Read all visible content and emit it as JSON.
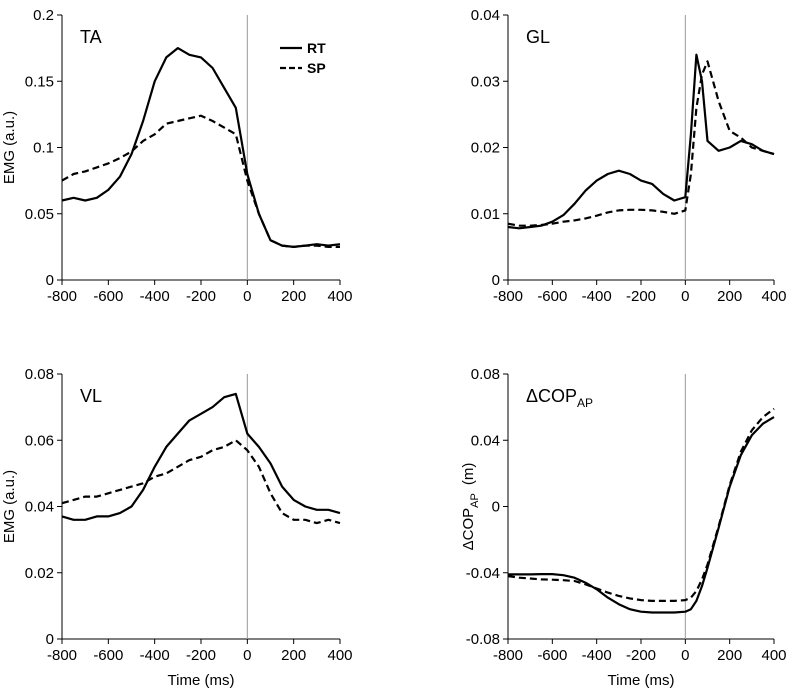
{
  "chart_data": [
    {
      "type": "line",
      "title": "TA",
      "xlabel": "",
      "ylabel": "EMG (a.u.)",
      "xlim": [
        -800,
        400
      ],
      "ylim": [
        0,
        0.2
      ],
      "xticks": [
        "-800",
        "-600",
        "-400",
        "-200",
        "0",
        "200",
        "400"
      ],
      "yticks": [
        "0",
        "0.05",
        "0.1",
        "0.15",
        "0.2"
      ],
      "vline_x": 0,
      "legend": "top-right",
      "series": [
        {
          "name": "RT",
          "style": "solid",
          "x": [
            -800,
            -750,
            -700,
            -650,
            -600,
            -550,
            -500,
            -450,
            -400,
            -350,
            -300,
            -250,
            -200,
            -150,
            -100,
            -50,
            0,
            50,
            100,
            150,
            200,
            250,
            300,
            350,
            400
          ],
          "y": [
            0.06,
            0.062,
            0.06,
            0.062,
            0.068,
            0.078,
            0.095,
            0.12,
            0.15,
            0.168,
            0.175,
            0.17,
            0.168,
            0.16,
            0.145,
            0.13,
            0.08,
            0.05,
            0.03,
            0.026,
            0.025,
            0.026,
            0.027,
            0.026,
            0.027
          ]
        },
        {
          "name": "SP",
          "style": "dashed",
          "x": [
            -800,
            -750,
            -700,
            -650,
            -600,
            -550,
            -500,
            -450,
            -400,
            -350,
            -300,
            -250,
            -200,
            -150,
            -100,
            -50,
            0,
            50,
            100,
            150,
            200,
            250,
            300,
            350,
            400
          ],
          "y": [
            0.075,
            0.08,
            0.082,
            0.085,
            0.088,
            0.092,
            0.097,
            0.105,
            0.11,
            0.118,
            0.12,
            0.122,
            0.124,
            0.12,
            0.115,
            0.11,
            0.075,
            0.05,
            0.03,
            0.026,
            0.025,
            0.026,
            0.026,
            0.025,
            0.025
          ]
        }
      ]
    },
    {
      "type": "line",
      "title": "GL",
      "xlabel": "",
      "ylabel": "",
      "xlim": [
        -800,
        400
      ],
      "ylim": [
        0,
        0.04
      ],
      "xticks": [
        "-800",
        "-600",
        "-400",
        "-200",
        "0",
        "200",
        "400"
      ],
      "yticks": [
        "0",
        "0.01",
        "0.02",
        "0.03",
        "0.04"
      ],
      "vline_x": 0,
      "series": [
        {
          "name": "RT",
          "style": "solid",
          "x": [
            -800,
            -750,
            -700,
            -650,
            -600,
            -550,
            -500,
            -450,
            -400,
            -350,
            -300,
            -250,
            -200,
            -150,
            -100,
            -50,
            0,
            25,
            50,
            75,
            100,
            150,
            200,
            250,
            300,
            350,
            400
          ],
          "y": [
            0.008,
            0.0078,
            0.008,
            0.0082,
            0.0088,
            0.0098,
            0.0115,
            0.0135,
            0.015,
            0.016,
            0.0165,
            0.016,
            0.015,
            0.0145,
            0.013,
            0.012,
            0.0125,
            0.022,
            0.034,
            0.03,
            0.021,
            0.0195,
            0.02,
            0.021,
            0.0205,
            0.0195,
            0.019
          ]
        },
        {
          "name": "SP",
          "style": "dashed",
          "x": [
            -800,
            -750,
            -700,
            -650,
            -600,
            -550,
            -500,
            -450,
            -400,
            -350,
            -300,
            -250,
            -200,
            -150,
            -100,
            -50,
            0,
            25,
            50,
            75,
            100,
            150,
            200,
            250,
            300,
            350,
            400
          ],
          "y": [
            0.0085,
            0.0082,
            0.0082,
            0.0083,
            0.0085,
            0.0088,
            0.009,
            0.0093,
            0.0097,
            0.0102,
            0.0105,
            0.0106,
            0.0106,
            0.0105,
            0.0103,
            0.01,
            0.0105,
            0.016,
            0.026,
            0.031,
            0.033,
            0.027,
            0.0225,
            0.0215,
            0.02,
            0.0195,
            0.019
          ]
        }
      ]
    },
    {
      "type": "line",
      "title": "VL",
      "xlabel": "Time (ms)",
      "ylabel": "EMG (a.u.)",
      "xlim": [
        -800,
        400
      ],
      "ylim": [
        0,
        0.08
      ],
      "xticks": [
        "-800",
        "-600",
        "-400",
        "-200",
        "0",
        "200",
        "400"
      ],
      "yticks": [
        "0",
        "0.02",
        "0.04",
        "0.06",
        "0.08"
      ],
      "vline_x": 0,
      "series": [
        {
          "name": "RT",
          "style": "solid",
          "x": [
            -800,
            -750,
            -700,
            -650,
            -600,
            -550,
            -500,
            -450,
            -400,
            -350,
            -300,
            -250,
            -200,
            -150,
            -100,
            -50,
            0,
            50,
            100,
            150,
            200,
            250,
            300,
            350,
            400
          ],
          "y": [
            0.037,
            0.036,
            0.036,
            0.037,
            0.037,
            0.038,
            0.04,
            0.045,
            0.052,
            0.058,
            0.062,
            0.066,
            0.068,
            0.07,
            0.073,
            0.074,
            0.062,
            0.058,
            0.053,
            0.046,
            0.042,
            0.04,
            0.039,
            0.039,
            0.038
          ]
        },
        {
          "name": "SP",
          "style": "dashed",
          "x": [
            -800,
            -750,
            -700,
            -650,
            -600,
            -550,
            -500,
            -450,
            -400,
            -350,
            -300,
            -250,
            -200,
            -150,
            -100,
            -50,
            0,
            50,
            100,
            150,
            200,
            250,
            300,
            350,
            400
          ],
          "y": [
            0.041,
            0.042,
            0.043,
            0.043,
            0.044,
            0.045,
            0.046,
            0.047,
            0.049,
            0.05,
            0.052,
            0.054,
            0.055,
            0.057,
            0.058,
            0.06,
            0.057,
            0.052,
            0.044,
            0.038,
            0.036,
            0.036,
            0.035,
            0.036,
            0.035
          ]
        }
      ]
    },
    {
      "type": "line",
      "title": "ΔCOP",
      "title_sub": "AP",
      "xlabel": "Time (ms)",
      "ylabel": "ΔCOP",
      "ylabel_sub": "AP",
      "ylabel_unit": "(m)",
      "xlim": [
        -800,
        400
      ],
      "ylim": [
        -0.08,
        0.08
      ],
      "xticks": [
        "-800",
        "-600",
        "-400",
        "-200",
        "0",
        "200",
        "400"
      ],
      "yticks": [
        "-0.08",
        "-0.04",
        "0",
        "0.04",
        "0.08"
      ],
      "vline_x": 0,
      "series": [
        {
          "name": "RT",
          "style": "solid",
          "x": [
            -800,
            -750,
            -700,
            -650,
            -600,
            -550,
            -500,
            -450,
            -400,
            -350,
            -300,
            -250,
            -200,
            -150,
            -100,
            -50,
            0,
            25,
            50,
            75,
            100,
            150,
            200,
            250,
            300,
            350,
            400
          ],
          "y": [
            -0.041,
            -0.041,
            -0.041,
            -0.0408,
            -0.0408,
            -0.0415,
            -0.043,
            -0.046,
            -0.05,
            -0.055,
            -0.059,
            -0.062,
            -0.0635,
            -0.064,
            -0.064,
            -0.064,
            -0.0635,
            -0.062,
            -0.057,
            -0.048,
            -0.037,
            -0.013,
            0.012,
            0.031,
            0.043,
            0.05,
            0.054
          ]
        },
        {
          "name": "SP",
          "style": "dashed",
          "x": [
            -800,
            -750,
            -700,
            -650,
            -600,
            -550,
            -500,
            -450,
            -400,
            -350,
            -300,
            -250,
            -200,
            -150,
            -100,
            -50,
            0,
            25,
            50,
            75,
            100,
            150,
            200,
            250,
            300,
            350,
            400
          ],
          "y": [
            -0.042,
            -0.043,
            -0.0435,
            -0.044,
            -0.0442,
            -0.0445,
            -0.045,
            -0.047,
            -0.0495,
            -0.052,
            -0.054,
            -0.0555,
            -0.0565,
            -0.057,
            -0.057,
            -0.057,
            -0.0565,
            -0.055,
            -0.051,
            -0.044,
            -0.035,
            -0.012,
            0.013,
            0.033,
            0.046,
            0.054,
            0.059
          ]
        }
      ]
    }
  ]
}
